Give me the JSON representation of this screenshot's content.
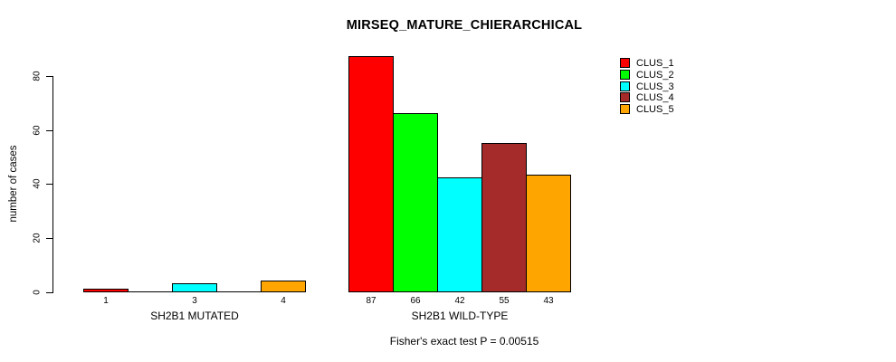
{
  "title": "MIRSEQ_MATURE_CHIERARCHICAL",
  "chart_data": {
    "type": "bar",
    "title": "MIRSEQ_MATURE_CHIERARCHICAL",
    "ylabel": "number of cases",
    "xlabel": "",
    "ylim": [
      0,
      87
    ],
    "yticks": [
      0,
      20,
      40,
      60,
      80
    ],
    "grid": false,
    "legend_position": "top-right",
    "categories": [
      "SH2B1 MUTATED",
      "SH2B1 WILD-TYPE"
    ],
    "series": [
      {
        "name": "CLUS_1",
        "color": "#FF0000",
        "values": [
          1,
          87
        ]
      },
      {
        "name": "CLUS_2",
        "color": "#00FF00",
        "values": [
          0,
          66
        ]
      },
      {
        "name": "CLUS_3",
        "color": "#00FFFF",
        "values": [
          3,
          42
        ]
      },
      {
        "name": "CLUS_4",
        "color": "#A52A2A",
        "values": [
          0,
          55
        ]
      },
      {
        "name": "CLUS_5",
        "color": "#FFA500",
        "values": [
          4,
          43
        ]
      }
    ],
    "bar_value_labels": {
      "SH2B1 MUTATED": [
        "1",
        "3",
        "4"
      ],
      "SH2B1 WILD-TYPE": [
        "87",
        "66",
        "42",
        "55",
        "43"
      ]
    },
    "annotation": "Fisher's exact test P = 0.00515",
    "axis_color": "#000000",
    "background_color": "#FFFFFF"
  }
}
